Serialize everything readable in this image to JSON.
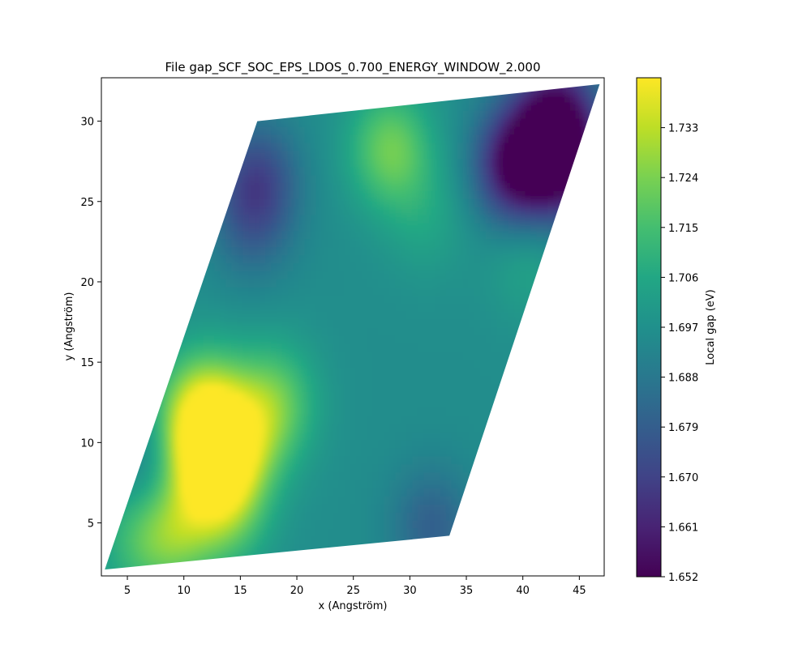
{
  "chart_data": {
    "type": "heatmap",
    "title": "File gap_SCF_SOC_EPS_LDOS_0.700_ENERGY_WINDOW_2.000",
    "xlabel": "x (Angström)",
    "ylabel": "y (Angström)",
    "xlim": [
      2.7,
      47.2
    ],
    "ylim": [
      1.7,
      32.7
    ],
    "xticks": [
      5,
      10,
      15,
      20,
      25,
      30,
      35,
      40,
      45
    ],
    "yticks": [
      5,
      10,
      15,
      20,
      25,
      30
    ],
    "colorbar": {
      "label": "Local gap (eV)",
      "colormap": "viridis",
      "range": [
        1.652,
        1.742
      ],
      "ticks": [
        "1.652",
        "1.661",
        "1.670",
        "1.679",
        "1.688",
        "1.697",
        "1.706",
        "1.715",
        "1.724",
        "1.733"
      ]
    },
    "domain": {
      "shape": "parallelogram",
      "corners": [
        [
          3.0,
          2.1
        ],
        [
          33.5,
          4.2
        ],
        [
          46.8,
          32.3
        ],
        [
          16.5,
          30.0
        ]
      ]
    },
    "background_value": 1.696,
    "features": [
      {
        "x": 12.5,
        "y": 8.7,
        "value": 1.741
      },
      {
        "x": 12.0,
        "y": 12.5,
        "value": 1.72
      },
      {
        "x": 18.0,
        "y": 12.5,
        "value": 1.72
      },
      {
        "x": 15.0,
        "y": 10.0,
        "value": 1.716
      },
      {
        "x": 10.5,
        "y": 11.0,
        "value": 1.715
      },
      {
        "x": 9.0,
        "y": 4.5,
        "value": 1.722
      },
      {
        "x": 14.0,
        "y": 5.5,
        "value": 1.712
      },
      {
        "x": 5.5,
        "y": 4.0,
        "value": 1.708
      },
      {
        "x": 7.5,
        "y": 8.5,
        "value": 1.684
      },
      {
        "x": 28.3,
        "y": 28.3,
        "value": 1.722
      },
      {
        "x": 39.5,
        "y": 27.2,
        "value": 1.652
      },
      {
        "x": 43.0,
        "y": 30.5,
        "value": 1.66
      },
      {
        "x": 44.0,
        "y": 27.0,
        "value": 1.665
      },
      {
        "x": 16.5,
        "y": 26.5,
        "value": 1.674
      },
      {
        "x": 16.0,
        "y": 23.5,
        "value": 1.684
      },
      {
        "x": 32.0,
        "y": 4.8,
        "value": 1.68
      },
      {
        "x": 40.5,
        "y": 21.5,
        "value": 1.705
      },
      {
        "x": 31.5,
        "y": 24.0,
        "value": 1.704
      },
      {
        "x": 22.0,
        "y": 20.0,
        "value": 1.696
      }
    ]
  }
}
